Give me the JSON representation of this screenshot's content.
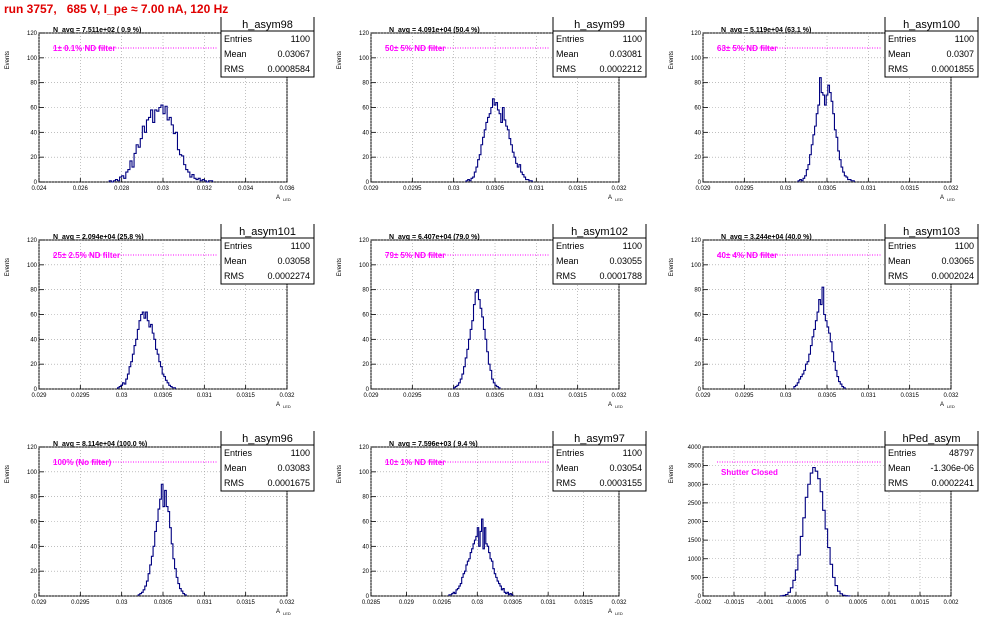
{
  "page_title": "run 3757,   685 V, I_pe ≈ 7.00 nA, 120 Hz",
  "chart_data": [
    {
      "type": "bar",
      "name": "h_asym98",
      "navg_text": "N_avg = 7.511e+02 ( 0.9 %)",
      "filter_text": "1± 0.1% ND filter",
      "stats": {
        "entries_label": "Entries",
        "entries": "1100",
        "mean_label": "Mean",
        "mean": "0.03067",
        "rms_label": "RMS",
        "rms": "0.0008584"
      },
      "ylabel": "Events",
      "xlabel": "A",
      "xlabel_sub": "LED",
      "ylim": [
        0,
        120
      ],
      "xlim": [
        0.024,
        0.036
      ],
      "yticks": [
        0,
        20,
        40,
        60,
        80,
        100,
        120
      ],
      "xticks": [
        0.024,
        0.026,
        0.028,
        0.03,
        0.032,
        0.034,
        0.036
      ],
      "xtick_labels": [
        "0.024",
        "0.026",
        "0.028",
        "0.03",
        "0.032",
        "0.034",
        "0.036"
      ],
      "bin_start": 0.0274,
      "bin_width": 0.0001,
      "values": [
        1,
        0,
        1,
        2,
        1,
        4,
        5,
        3,
        8,
        10,
        17,
        12,
        23,
        30,
        28,
        35,
        45,
        40,
        50,
        52,
        58,
        48,
        58,
        57,
        60,
        62,
        55,
        61,
        50,
        52,
        46,
        39,
        40,
        26,
        22,
        21,
        14,
        10,
        8,
        4,
        6,
        3,
        2,
        3,
        1,
        2,
        1,
        0,
        1,
        1
      ]
    },
    {
      "type": "bar",
      "name": "h_asym99",
      "navg_text": "N_avg = 4.091e+04 (50.4 %)",
      "filter_text": "50± 5% ND filter",
      "stats": {
        "entries_label": "Entries",
        "entries": "1100",
        "mean_label": "Mean",
        "mean": "0.03081",
        "rms_label": "RMS",
        "rms": "0.0002212"
      },
      "ylabel": "Events",
      "xlabel": "A",
      "xlabel_sub": "LED",
      "ylim": [
        0,
        120
      ],
      "xlim": [
        0.029,
        0.032
      ],
      "yticks": [
        0,
        20,
        40,
        60,
        80,
        100,
        120
      ],
      "xticks": [
        0.029,
        0.0295,
        0.03,
        0.0305,
        0.031,
        0.0315,
        0.032
      ],
      "xtick_labels": [
        "0.029",
        "0.0295",
        "0.03",
        "0.0305",
        "0.031",
        "0.0315",
        "0.032"
      ],
      "bin_start": 0.03015,
      "bin_width": 2e-05,
      "values": [
        1,
        2,
        1,
        3,
        4,
        8,
        12,
        18,
        22,
        30,
        36,
        42,
        48,
        52,
        55,
        60,
        67,
        62,
        64,
        58,
        55,
        48,
        60,
        50,
        45,
        42,
        35,
        30,
        24,
        20,
        15,
        12,
        14,
        8,
        6,
        4,
        2,
        2,
        1,
        1
      ]
    },
    {
      "type": "bar",
      "name": "h_asym100",
      "navg_text": "N_avg = 5.119e+04 (63.1 %)",
      "filter_text": "63± 5% ND filter",
      "stats": {
        "entries_label": "Entries",
        "entries": "1100",
        "mean_label": "Mean",
        "mean": "0.0307",
        "rms_label": "RMS",
        "rms": "0.0001855"
      },
      "ylabel": "Events",
      "xlabel": "A",
      "xlabel_sub": "LED",
      "ylim": [
        0,
        120
      ],
      "xlim": [
        0.029,
        0.032
      ],
      "yticks": [
        0,
        20,
        40,
        60,
        80,
        100,
        120
      ],
      "xticks": [
        0.029,
        0.0295,
        0.03,
        0.0305,
        0.031,
        0.0315,
        0.032
      ],
      "xtick_labels": [
        "0.029",
        "0.0295",
        "0.03",
        "0.0305",
        "0.031",
        "0.0315",
        "0.032"
      ],
      "bin_start": 0.03015,
      "bin_width": 2e-05,
      "values": [
        1,
        2,
        1,
        3,
        5,
        10,
        14,
        22,
        30,
        38,
        45,
        55,
        62,
        84,
        72,
        70,
        62,
        70,
        78,
        72,
        65,
        55,
        42,
        36,
        25,
        18,
        12,
        8,
        5,
        4,
        2,
        2,
        1,
        1
      ]
    },
    {
      "type": "bar",
      "name": "h_asym101",
      "navg_text": "N_avg = 2.094e+04 (25.8 %)",
      "filter_text": "25± 2.5% ND filter",
      "stats": {
        "entries_label": "Entries",
        "entries": "1100",
        "mean_label": "Mean",
        "mean": "0.03058",
        "rms_label": "RMS",
        "rms": "0.0002274"
      },
      "ylabel": "Events",
      "xlabel": "A",
      "xlabel_sub": "LED",
      "ylim": [
        0,
        120
      ],
      "xlim": [
        0.029,
        0.032
      ],
      "yticks": [
        0,
        20,
        40,
        60,
        80,
        100,
        120
      ],
      "xticks": [
        0.029,
        0.0295,
        0.03,
        0.0305,
        0.031,
        0.0315,
        0.032
      ],
      "xtick_labels": [
        "0.029",
        "0.0295",
        "0.03",
        "0.0305",
        "0.031",
        "0.0315",
        "0.032"
      ],
      "bin_start": 0.02995,
      "bin_width": 2e-05,
      "values": [
        1,
        2,
        3,
        5,
        4,
        8,
        12,
        18,
        22,
        28,
        35,
        40,
        48,
        55,
        60,
        62,
        57,
        62,
        55,
        50,
        52,
        45,
        40,
        32,
        28,
        22,
        18,
        12,
        10,
        7,
        5,
        3,
        2,
        1,
        1
      ]
    },
    {
      "type": "bar",
      "name": "h_asym102",
      "navg_text": "N_avg = 6.407e+04 (79.0 %)",
      "filter_text": "79± 5% ND filter",
      "stats": {
        "entries_label": "Entries",
        "entries": "1100",
        "mean_label": "Mean",
        "mean": "0.03055",
        "rms_label": "RMS",
        "rms": "0.0001788"
      },
      "ylabel": "Events",
      "xlabel": "A",
      "xlabel_sub": "LED",
      "ylim": [
        0,
        120
      ],
      "xlim": [
        0.029,
        0.032
      ],
      "yticks": [
        0,
        20,
        40,
        60,
        80,
        100,
        120
      ],
      "xticks": [
        0.029,
        0.0295,
        0.03,
        0.0305,
        0.031,
        0.0315,
        0.032
      ],
      "xtick_labels": [
        "0.029",
        "0.0295",
        "0.03",
        "0.0305",
        "0.031",
        "0.0315",
        "0.032"
      ],
      "bin_start": 0.03,
      "bin_width": 2e-05,
      "values": [
        1,
        2,
        3,
        5,
        8,
        12,
        18,
        25,
        32,
        40,
        48,
        55,
        68,
        78,
        80,
        72,
        65,
        58,
        48,
        40,
        30,
        20,
        15,
        8,
        5,
        3,
        2,
        1
      ]
    },
    {
      "type": "bar",
      "name": "h_asym103",
      "navg_text": "N_avg = 3.244e+04 (40.0 %)",
      "filter_text": "40± 4% ND filter",
      "stats": {
        "entries_label": "Entries",
        "entries": "1100",
        "mean_label": "Mean",
        "mean": "0.03065",
        "rms_label": "RMS",
        "rms": "0.0002024"
      },
      "ylabel": "Events",
      "xlabel": "A",
      "xlabel_sub": "LED",
      "ylim": [
        0,
        120
      ],
      "xlim": [
        0.029,
        0.032
      ],
      "yticks": [
        0,
        20,
        40,
        60,
        80,
        100,
        120
      ],
      "xticks": [
        0.029,
        0.0295,
        0.03,
        0.0305,
        0.031,
        0.0315,
        0.032
      ],
      "xtick_labels": [
        "0.029",
        "0.0295",
        "0.03",
        "0.0305",
        "0.031",
        "0.0315",
        "0.032"
      ],
      "bin_start": 0.0301,
      "bin_width": 2e-05,
      "values": [
        2,
        3,
        5,
        8,
        10,
        12,
        15,
        20,
        22,
        28,
        35,
        42,
        48,
        55,
        62,
        72,
        68,
        82,
        60,
        55,
        50,
        45,
        38,
        30,
        22,
        15,
        10,
        6,
        4,
        2,
        1
      ]
    },
    {
      "type": "bar",
      "name": "h_asym96",
      "navg_text": "N_avg = 8.114e+04 (100.0 %)",
      "filter_text": "100% (No filter)",
      "stats": {
        "entries_label": "Entries",
        "entries": "1100",
        "mean_label": "Mean",
        "mean": "0.03083",
        "rms_label": "RMS",
        "rms": "0.0001675"
      },
      "ylabel": "Events",
      "xlabel": "A",
      "xlabel_sub": "LED",
      "ylim": [
        0,
        120
      ],
      "xlim": [
        0.029,
        0.032
      ],
      "yticks": [
        0,
        20,
        40,
        60,
        80,
        100,
        120
      ],
      "xticks": [
        0.029,
        0.0295,
        0.03,
        0.0305,
        0.031,
        0.0315,
        0.032
      ],
      "xtick_labels": [
        "0.029",
        "0.0295",
        "0.03",
        "0.0305",
        "0.031",
        "0.0315",
        "0.032"
      ],
      "bin_start": 0.0302,
      "bin_width": 2e-05,
      "values": [
        1,
        2,
        3,
        5,
        8,
        12,
        18,
        25,
        32,
        40,
        52,
        60,
        70,
        78,
        90,
        72,
        85,
        72,
        68,
        55,
        42,
        30,
        22,
        15,
        10,
        6,
        4,
        2,
        1
      ]
    },
    {
      "type": "bar",
      "name": "h_asym97",
      "navg_text": "N_avg = 7.596e+03 ( 9.4 %)",
      "filter_text": "10± 1% ND filter",
      "stats": {
        "entries_label": "Entries",
        "entries": "1100",
        "mean_label": "Mean",
        "mean": "0.03054",
        "rms_label": "RMS",
        "rms": "0.0003155"
      },
      "ylabel": "Events",
      "xlabel": "A",
      "xlabel_sub": "LED",
      "ylim": [
        0,
        120
      ],
      "xlim": [
        0.0285,
        0.032
      ],
      "yticks": [
        0,
        20,
        40,
        60,
        80,
        100,
        120
      ],
      "xticks": [
        0.0285,
        0.029,
        0.0295,
        0.03,
        0.0305,
        0.031,
        0.0315,
        0.032
      ],
      "xtick_labels": [
        "0.0285",
        "0.029",
        "0.0295",
        "0.03",
        "0.0305",
        "0.031",
        "0.0315",
        "0.032"
      ],
      "bin_start": 0.0296,
      "bin_width": 2e-05,
      "values": [
        1,
        1,
        2,
        3,
        2,
        5,
        6,
        8,
        10,
        15,
        18,
        20,
        25,
        28,
        30,
        35,
        38,
        42,
        45,
        48,
        55,
        40,
        52,
        62,
        38,
        55,
        42,
        40,
        35,
        30,
        28,
        22,
        18,
        15,
        12,
        10,
        8,
        5,
        6,
        3,
        2,
        3,
        1,
        2,
        1
      ]
    },
    {
      "type": "bar",
      "name": "hPed_asym",
      "navg_text": "",
      "filter_text": "Shutter Closed",
      "stats": {
        "entries_label": "Entries",
        "entries": "48797",
        "mean_label": "Mean",
        "mean": "-1.306e-06",
        "rms_label": "RMS",
        "rms": "0.0002241"
      },
      "ylabel": "Events",
      "xlabel": "",
      "xlabel_sub": "",
      "ylim": [
        0,
        4000
      ],
      "xlim": [
        -0.002,
        0.002
      ],
      "yticks": [
        0,
        500,
        1000,
        1500,
        2000,
        2500,
        3000,
        3500,
        4000
      ],
      "xticks": [
        -0.002,
        -0.0015,
        -0.001,
        -0.0005,
        0,
        0.0005,
        0.001,
        0.0015,
        0.002
      ],
      "xtick_labels": [
        "-0.002",
        "-0.0015",
        "-0.001",
        "-0.0005",
        "0",
        "0.0005",
        "0.001",
        "0.0015",
        "0.002"
      ],
      "bin_start": -0.00075,
      "bin_width": 4e-05,
      "values": [
        5,
        15,
        40,
        100,
        220,
        420,
        700,
        1100,
        1600,
        2100,
        2650,
        3000,
        3300,
        3450,
        3350,
        3150,
        2800,
        2300,
        1800,
        1300,
        850,
        500,
        280,
        130,
        60,
        20,
        8,
        3
      ]
    }
  ]
}
